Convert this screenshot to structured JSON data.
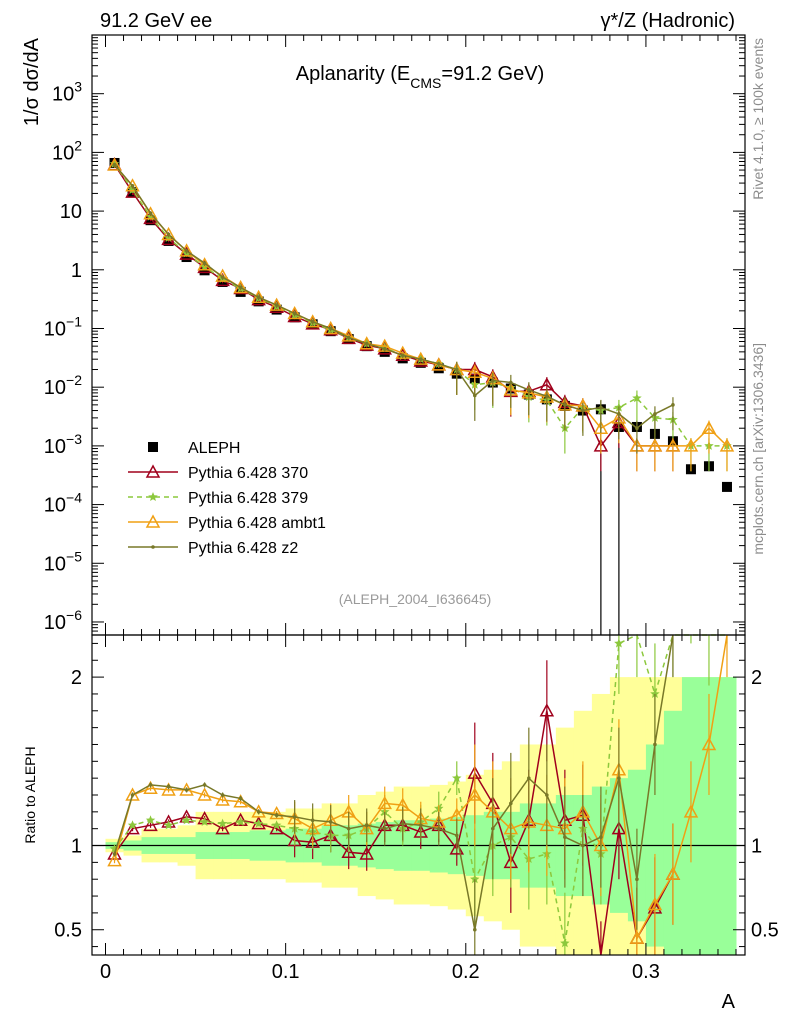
{
  "header": {
    "left": "91.2 GeV ee",
    "right": "γ*/Z (Hadronic)"
  },
  "side_text": {
    "rivet": "Rivet 4.1.0, ≥ 100k events",
    "url": "mcplots.cern.ch [arXiv:1306.3436]"
  },
  "chart_data": [
    {
      "type": "scatter",
      "name": "main-panel",
      "title": "Aplanarity (E",
      "title_sub": "CMS",
      "title_rest": "=91.2 GeV)",
      "ylabel": "1/σ dσ/dA",
      "y_scale": "log",
      "ylim": [
        6e-07,
        10000.0
      ],
      "xlim": [
        -0.0075,
        0.355
      ],
      "ytick_labels": [
        {
          "value": 1000.0,
          "base": "10",
          "exp": "3"
        },
        {
          "value": 100.0,
          "base": "10",
          "exp": "2"
        },
        {
          "value": 10,
          "base": "10",
          "exp": ""
        },
        {
          "value": 1,
          "base": "1",
          "exp": ""
        },
        {
          "value": 0.1,
          "base": "10",
          "exp": "−1"
        },
        {
          "value": 0.01,
          "base": "10",
          "exp": "−2"
        },
        {
          "value": 0.001,
          "base": "10",
          "exp": "−3"
        },
        {
          "value": 0.0001,
          "base": "10",
          "exp": "−4"
        },
        {
          "value": 1e-05,
          "base": "10",
          "exp": "−5"
        },
        {
          "value": 1e-06,
          "base": "10",
          "exp": "−6"
        }
      ],
      "x": [
        0.005,
        0.015,
        0.025,
        0.035,
        0.045,
        0.055,
        0.065,
        0.075,
        0.085,
        0.095,
        0.105,
        0.115,
        0.125,
        0.135,
        0.145,
        0.155,
        0.165,
        0.175,
        0.185,
        0.195,
        0.205,
        0.215,
        0.225,
        0.235,
        0.245,
        0.255,
        0.265,
        0.275,
        0.285,
        0.295,
        0.305,
        0.315,
        0.325,
        0.335,
        0.345
      ],
      "series": [
        {
          "name": "ALEPH",
          "color": "#000000",
          "marker": "square",
          "values": [
            66,
            21,
            7.0,
            3.1,
            1.65,
            0.98,
            0.62,
            0.42,
            0.29,
            0.21,
            0.155,
            0.118,
            0.09,
            0.066,
            0.05,
            0.04,
            0.031,
            0.026,
            0.021,
            0.017,
            0.014,
            0.012,
            0.0095,
            0.0075,
            0.0062,
            0.0048,
            0.004,
            0.0042,
            0.0021,
            0.0021,
            0.0016,
            0.0012,
            0.0004,
            0.00045,
            0.0002
          ]
        },
        {
          "name": "Pythia 6.428 370",
          "color": "#a0001c",
          "marker": "triangle-open",
          "dash": "",
          "values": [
            62,
            21,
            7.5,
            3.3,
            1.85,
            1.1,
            0.66,
            0.48,
            0.31,
            0.23,
            0.16,
            0.12,
            0.095,
            0.068,
            0.052,
            0.045,
            0.035,
            0.028,
            0.024,
            0.02,
            0.02,
            0.015,
            0.0085,
            0.0085,
            0.011,
            0.0055,
            0.0048,
            0.001,
            0.0025,
            0.001,
            0.001,
            0.001
          ]
        },
        {
          "name": "Pythia 6.428 379",
          "color": "#8cc83c",
          "marker": "star",
          "dash": "5,4",
          "values": [
            64,
            23,
            8.0,
            3.5,
            1.9,
            1.12,
            0.7,
            0.48,
            0.33,
            0.24,
            0.17,
            0.125,
            0.095,
            0.07,
            0.055,
            0.048,
            0.034,
            0.03,
            0.025,
            0.02,
            0.011,
            0.012,
            0.0098,
            0.0068,
            0.006,
            0.002,
            0.0045,
            0.004,
            0.0045,
            0.0065,
            0.003,
            0.0028,
            0.001,
            0.001,
            0.001
          ]
        },
        {
          "name": "Pythia 6.428 ambt1",
          "color": "#f0a014",
          "marker": "triangle-open",
          "dash": "",
          "values": [
            61,
            27,
            9.0,
            4.0,
            2.1,
            1.22,
            0.78,
            0.5,
            0.34,
            0.25,
            0.18,
            0.13,
            0.1,
            0.075,
            0.055,
            0.05,
            0.038,
            0.03,
            0.024,
            0.02,
            0.018,
            0.014,
            0.009,
            0.008,
            0.0068,
            0.005,
            0.0048,
            0.002,
            0.003,
            0.001,
            0.001,
            0.001,
            0.001,
            0.002,
            0.001
          ]
        },
        {
          "name": "Pythia 6.428 z2",
          "color": "#787828",
          "marker": "dot",
          "dash": "",
          "values": [
            62,
            27,
            9.2,
            4.0,
            2.1,
            1.3,
            0.75,
            0.5,
            0.34,
            0.25,
            0.18,
            0.13,
            0.1,
            0.07,
            0.055,
            0.045,
            0.035,
            0.03,
            0.025,
            0.02,
            0.0072,
            0.013,
            0.012,
            0.009,
            0.007,
            0.005,
            0.004,
            0.0045,
            0.0035,
            0.002,
            0.0035,
            0.005
          ]
        }
      ],
      "annotation": "(ALEPH_2004_I636645)"
    },
    {
      "type": "line",
      "name": "ratio-panel",
      "ylabel": "Ratio to ALEPH",
      "xlabel": "A",
      "ylim": [
        0.35,
        2.25
      ],
      "xlim": [
        -0.0075,
        0.355
      ],
      "x_ticks": [
        0,
        0.1,
        0.2,
        0.3
      ],
      "x_tick_labels": [
        "0",
        "0.1",
        "0.2",
        "0.3"
      ],
      "y_ticks": [
        0.5,
        1,
        2
      ],
      "y_tick_labels": [
        "0.5",
        "1",
        "2"
      ],
      "band_green_halfwidth": [
        0.02,
        0.03,
        0.05,
        0.05,
        0.05,
        0.08,
        0.08,
        0.08,
        0.09,
        0.09,
        0.1,
        0.1,
        0.12,
        0.12,
        0.13,
        0.14,
        0.15,
        0.15,
        0.16,
        0.17,
        0.18,
        0.2,
        0.2,
        0.25,
        0.25,
        0.3,
        0.3,
        0.35,
        0.4,
        0.45,
        0.6,
        0.8,
        1.0,
        1.0,
        1.0
      ],
      "band_yellow_halfwidth": [
        0.04,
        0.06,
        0.1,
        0.1,
        0.12,
        0.2,
        0.2,
        0.2,
        0.2,
        0.2,
        0.22,
        0.22,
        0.25,
        0.25,
        0.3,
        0.32,
        0.35,
        0.35,
        0.36,
        0.38,
        0.42,
        0.45,
        0.5,
        0.6,
        0.6,
        0.7,
        0.8,
        0.9,
        1.0,
        1.0,
        1.0,
        1.0,
        1.0,
        1.0,
        1.0
      ],
      "series": [
        {
          "name": "Pythia 6.428 370",
          "color": "#a0001c",
          "marker": "triangle-open",
          "dash": "",
          "values": [
            0.95,
            1.1,
            1.12,
            1.14,
            1.17,
            1.16,
            1.1,
            1.15,
            1.13,
            1.1,
            1.03,
            1.02,
            1.06,
            0.96,
            0.95,
            1.12,
            1.12,
            1.08,
            1.12,
            0.98,
            1.43,
            1.25,
            0.9,
            1.15,
            1.8,
            1.15,
            1.18,
            0.25,
            1.1,
            0.45,
            0.63,
            0.83
          ]
        },
        {
          "name": "Pythia 6.428 379",
          "color": "#8cc83c",
          "marker": "star",
          "dash": "5,4",
          "values": [
            0.98,
            1.12,
            1.15,
            1.12,
            1.15,
            1.14,
            1.13,
            1.14,
            1.13,
            1.12,
            1.1,
            1.08,
            1.06,
            1.06,
            1.1,
            1.2,
            1.1,
            1.14,
            1.22,
            1.4,
            0.8,
            1.0,
            1.05,
            0.92,
            0.95,
            0.42,
            1.1,
            0.95,
            2.2,
            2.3,
            1.9,
            2.3,
            2.5,
            2.25,
            2.5
          ]
        },
        {
          "name": "Pythia 6.428 ambt1",
          "color": "#f0a014",
          "marker": "triangle-open",
          "dash": "",
          "values": [
            0.91,
            1.3,
            1.34,
            1.33,
            1.33,
            1.3,
            1.27,
            1.26,
            1.2,
            1.19,
            1.16,
            1.1,
            1.15,
            1.2,
            1.1,
            1.25,
            1.24,
            1.16,
            1.14,
            1.18,
            1.3,
            1.2,
            1.1,
            1.14,
            1.12,
            1.1,
            1.2,
            1.0,
            1.45,
            0.45,
            0.65,
            0.83,
            1.2,
            1.6,
            2.3
          ]
        },
        {
          "name": "Pythia 6.428 z2",
          "color": "#787828",
          "marker": "dot",
          "dash": "",
          "values": [
            0.95,
            1.3,
            1.36,
            1.35,
            1.33,
            1.36,
            1.3,
            1.28,
            1.2,
            1.18,
            1.17,
            1.15,
            1.14,
            1.1,
            1.12,
            1.1,
            1.13,
            1.12,
            1.1,
            1.06,
            0.5,
            1.1,
            1.25,
            1.4,
            1.3,
            1.05,
            1.0,
            1.05,
            1.4,
            0.8,
            1.6,
            2.3
          ]
        }
      ]
    }
  ]
}
